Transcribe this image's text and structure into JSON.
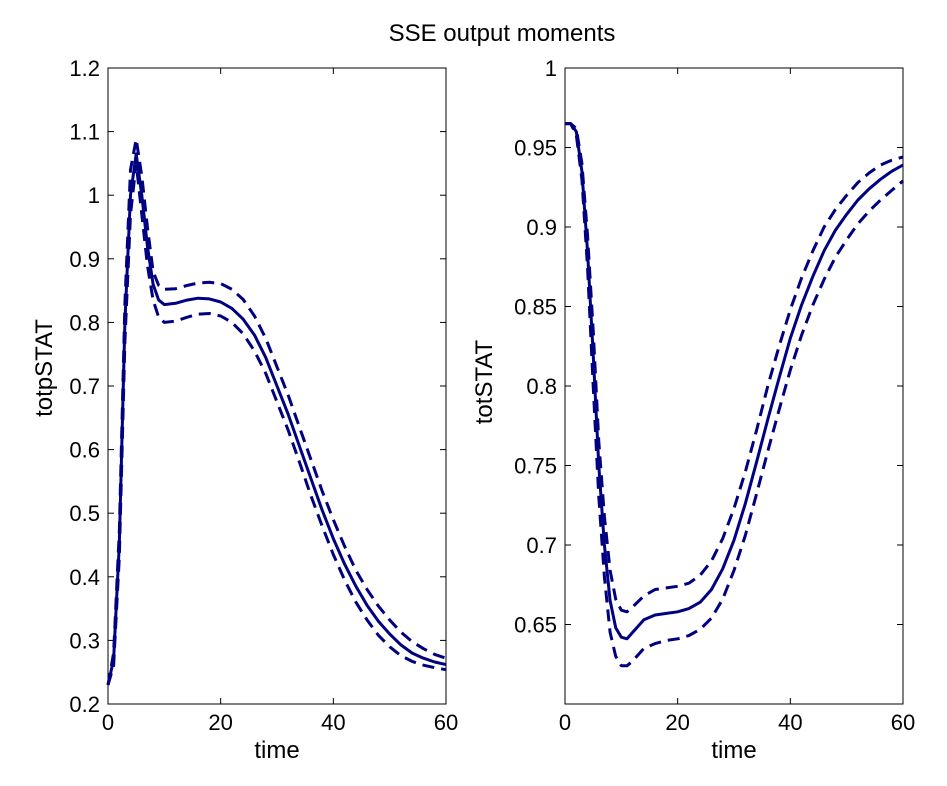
{
  "figure": {
    "title": "SSE output moments"
  },
  "chart_data": [
    {
      "type": "line",
      "title": "",
      "xlabel": "time",
      "ylabel": "totpSTAT",
      "xlim": [
        0,
        60
      ],
      "ylim": [
        0.2,
        1.2
      ],
      "xticks": [
        "0",
        "20",
        "40",
        "60"
      ],
      "yticks": [
        "0.2",
        "0.3",
        "0.4",
        "0.5",
        "0.6",
        "0.7",
        "0.8",
        "0.9",
        "1",
        "1.1",
        "1.2"
      ],
      "grid": false,
      "color": "#000080",
      "x": [
        0,
        1,
        2,
        3,
        4,
        5,
        6,
        7,
        8,
        9,
        10,
        12,
        14,
        16,
        18,
        20,
        22,
        24,
        26,
        28,
        30,
        32,
        34,
        36,
        38,
        40,
        42,
        44,
        46,
        48,
        50,
        52,
        54,
        56,
        58,
        60
      ],
      "series": [
        {
          "style": "solid",
          "values": [
            0.23,
            0.27,
            0.45,
            0.8,
            1.0,
            1.065,
            1.0,
            0.92,
            0.86,
            0.835,
            0.828,
            0.83,
            0.835,
            0.838,
            0.837,
            0.832,
            0.822,
            0.805,
            0.78,
            0.745,
            0.7,
            0.655,
            0.605,
            0.555,
            0.505,
            0.46,
            0.42,
            0.385,
            0.355,
            0.33,
            0.31,
            0.293,
            0.28,
            0.272,
            0.266,
            0.262
          ]
        },
        {
          "style": "dashed",
          "values": [
            0.23,
            0.28,
            0.47,
            0.83,
            1.04,
            1.088,
            1.03,
            0.95,
            0.88,
            0.858,
            0.852,
            0.853,
            0.858,
            0.862,
            0.863,
            0.861,
            0.852,
            0.836,
            0.81,
            0.775,
            0.73,
            0.685,
            0.635,
            0.585,
            0.535,
            0.49,
            0.448,
            0.41,
            0.38,
            0.354,
            0.332,
            0.313,
            0.298,
            0.287,
            0.278,
            0.272
          ]
        },
        {
          "style": "dashed",
          "values": [
            0.23,
            0.26,
            0.43,
            0.77,
            0.97,
            1.05,
            0.97,
            0.89,
            0.835,
            0.808,
            0.8,
            0.802,
            0.808,
            0.813,
            0.814,
            0.81,
            0.8,
            0.782,
            0.755,
            0.72,
            0.675,
            0.63,
            0.58,
            0.528,
            0.48,
            0.435,
            0.395,
            0.36,
            0.332,
            0.308,
            0.29,
            0.276,
            0.267,
            0.261,
            0.257,
            0.254
          ]
        }
      ]
    },
    {
      "type": "line",
      "title": "",
      "xlabel": "time",
      "ylabel": "totSTAT",
      "xlim": [
        0,
        60
      ],
      "ylim": [
        0.6,
        1.0
      ],
      "xticks": [
        "0",
        "20",
        "40",
        "60"
      ],
      "yticks": [
        "0.65",
        "0.7",
        "0.75",
        "0.8",
        "0.85",
        "0.9",
        "0.95",
        "1"
      ],
      "grid": false,
      "color": "#000080",
      "x": [
        0,
        1,
        2,
        3,
        4,
        5,
        6,
        7,
        8,
        9,
        10,
        11,
        12,
        14,
        16,
        18,
        20,
        22,
        24,
        26,
        28,
        30,
        32,
        34,
        36,
        38,
        40,
        42,
        44,
        46,
        48,
        50,
        52,
        54,
        56,
        58,
        60
      ],
      "series": [
        {
          "style": "solid",
          "values": [
            0.965,
            0.965,
            0.96,
            0.935,
            0.885,
            0.82,
            0.75,
            0.7,
            0.665,
            0.648,
            0.642,
            0.641,
            0.645,
            0.653,
            0.656,
            0.657,
            0.658,
            0.66,
            0.664,
            0.672,
            0.685,
            0.703,
            0.726,
            0.752,
            0.779,
            0.805,
            0.83,
            0.851,
            0.869,
            0.885,
            0.898,
            0.908,
            0.917,
            0.924,
            0.93,
            0.935,
            0.939
          ]
        },
        {
          "style": "dashed",
          "values": [
            0.965,
            0.965,
            0.962,
            0.94,
            0.895,
            0.835,
            0.765,
            0.718,
            0.684,
            0.666,
            0.659,
            0.658,
            0.661,
            0.668,
            0.672,
            0.673,
            0.674,
            0.676,
            0.681,
            0.69,
            0.704,
            0.723,
            0.746,
            0.772,
            0.8,
            0.825,
            0.848,
            0.868,
            0.885,
            0.9,
            0.911,
            0.92,
            0.928,
            0.934,
            0.939,
            0.942,
            0.944
          ]
        },
        {
          "style": "dashed",
          "values": [
            0.965,
            0.965,
            0.958,
            0.93,
            0.875,
            0.8,
            0.73,
            0.68,
            0.645,
            0.63,
            0.624,
            0.624,
            0.627,
            0.635,
            0.638,
            0.64,
            0.641,
            0.643,
            0.647,
            0.654,
            0.666,
            0.684,
            0.706,
            0.732,
            0.759,
            0.785,
            0.81,
            0.832,
            0.851,
            0.867,
            0.881,
            0.892,
            0.902,
            0.91,
            0.917,
            0.923,
            0.929
          ]
        }
      ]
    }
  ]
}
